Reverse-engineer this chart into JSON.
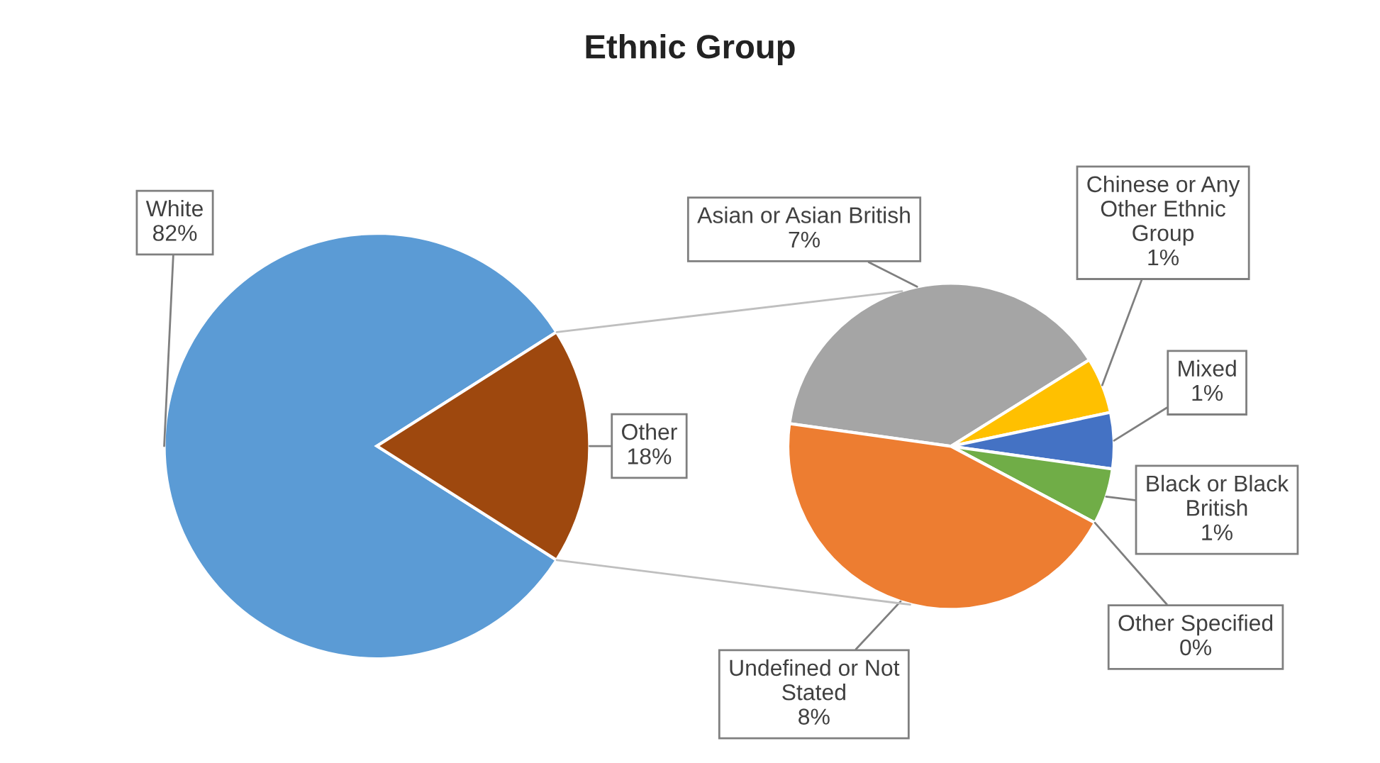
{
  "chart_data": [
    {
      "type": "pie",
      "title": "Ethnic Group",
      "categories": [
        "White",
        "Other"
      ],
      "values": [
        82,
        18
      ],
      "value_labels": [
        "82%",
        "18%"
      ],
      "colors": [
        "#5b9bd5",
        "#9e480e"
      ]
    },
    {
      "type": "pie",
      "categories": [
        "Asian or Asian British",
        "Chinese or Any\nOther Ethnic\nGroup",
        "Mixed",
        "Black or Black\nBritish",
        "Other Specified",
        "Undefined or Not\nStated"
      ],
      "values": [
        7,
        1,
        1,
        1,
        0,
        8
      ],
      "value_labels": [
        "7%",
        "1%",
        "1%",
        "1%",
        "0%",
        "8%"
      ],
      "colors": [
        "#a5a5a5",
        "#ffc000",
        "#4472c4",
        "#70ad47",
        "#264478",
        "#ed7d31"
      ]
    }
  ]
}
